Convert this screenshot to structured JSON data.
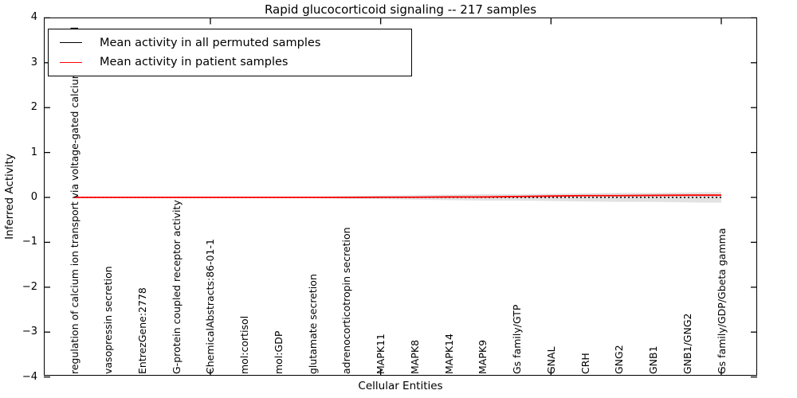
{
  "title": "Rapid glucocorticoid signaling -- 217 samples",
  "legend": {
    "items": [
      {
        "label": "Mean activity in all permuted samples",
        "color": "#000000"
      },
      {
        "label": "Mean activity in patient samples",
        "color": "#ff0000"
      }
    ]
  },
  "chart_data": {
    "type": "line",
    "title": "Rapid glucocorticoid signaling -- 217 samples",
    "xlabel": "Cellular Entities",
    "ylabel": "Inferred Activity",
    "ylim": [
      -4,
      4
    ],
    "yticks": [
      4,
      3,
      2,
      1,
      0,
      -1,
      -2,
      -3,
      -4
    ],
    "ytick_labels": [
      "4",
      "3",
      "2",
      "1",
      "0",
      "−1",
      "−2",
      "−3",
      "−4"
    ],
    "grid": false,
    "legend_position": "upper left",
    "categories": [
      "regulation of calcium ion transport via voltage-gated calcium channel",
      "vasopressin secretion",
      "EntrezGene:2778",
      "G-protein coupled receptor activity",
      "ChemicalAbstracts:86-01-1",
      "mol:cortisol",
      "mol:GDP",
      "glutamate secretion",
      "adrenocorticotropin secretion",
      "MAPK11",
      "MAPK8",
      "MAPK14",
      "MAPK9",
      "Gs family/GTP",
      "GNAL",
      "CRH",
      "GNG2",
      "GNB1",
      "GNB1/GNG2",
      "Gs family/GDP/Gbeta gamma"
    ],
    "series": [
      {
        "name": "Mean activity in all permuted samples",
        "color": "#000000",
        "style": "dotted",
        "values": [
          0,
          0,
          0,
          0,
          0,
          0,
          0,
          0,
          0,
          0,
          0,
          0,
          0,
          0,
          0,
          0,
          0,
          0,
          0,
          0
        ]
      },
      {
        "name": "Mean activity in patient samples",
        "color": "#ff0000",
        "style": "solid",
        "values": [
          0,
          0,
          0,
          0,
          0,
          0,
          0,
          0,
          0,
          0.005,
          0.005,
          0.01,
          0.01,
          0.02,
          0.03,
          0.04,
          0.04,
          0.045,
          0.05,
          0.05
        ]
      }
    ],
    "band": {
      "name": "permuted-samples spread",
      "color": "#dfdfdf",
      "upper": [
        0.01,
        0.01,
        0.01,
        0.01,
        0.01,
        0.01,
        0.01,
        0.015,
        0.03,
        0.04,
        0.05,
        0.06,
        0.07,
        0.07,
        0.08,
        0.09,
        0.1,
        0.1,
        0.11,
        0.12
      ],
      "lower": [
        -0.01,
        -0.01,
        -0.01,
        -0.01,
        -0.01,
        -0.01,
        -0.01,
        -0.015,
        -0.03,
        -0.04,
        -0.05,
        -0.06,
        -0.07,
        -0.07,
        -0.08,
        -0.09,
        -0.1,
        -0.1,
        -0.11,
        -0.12
      ]
    }
  }
}
